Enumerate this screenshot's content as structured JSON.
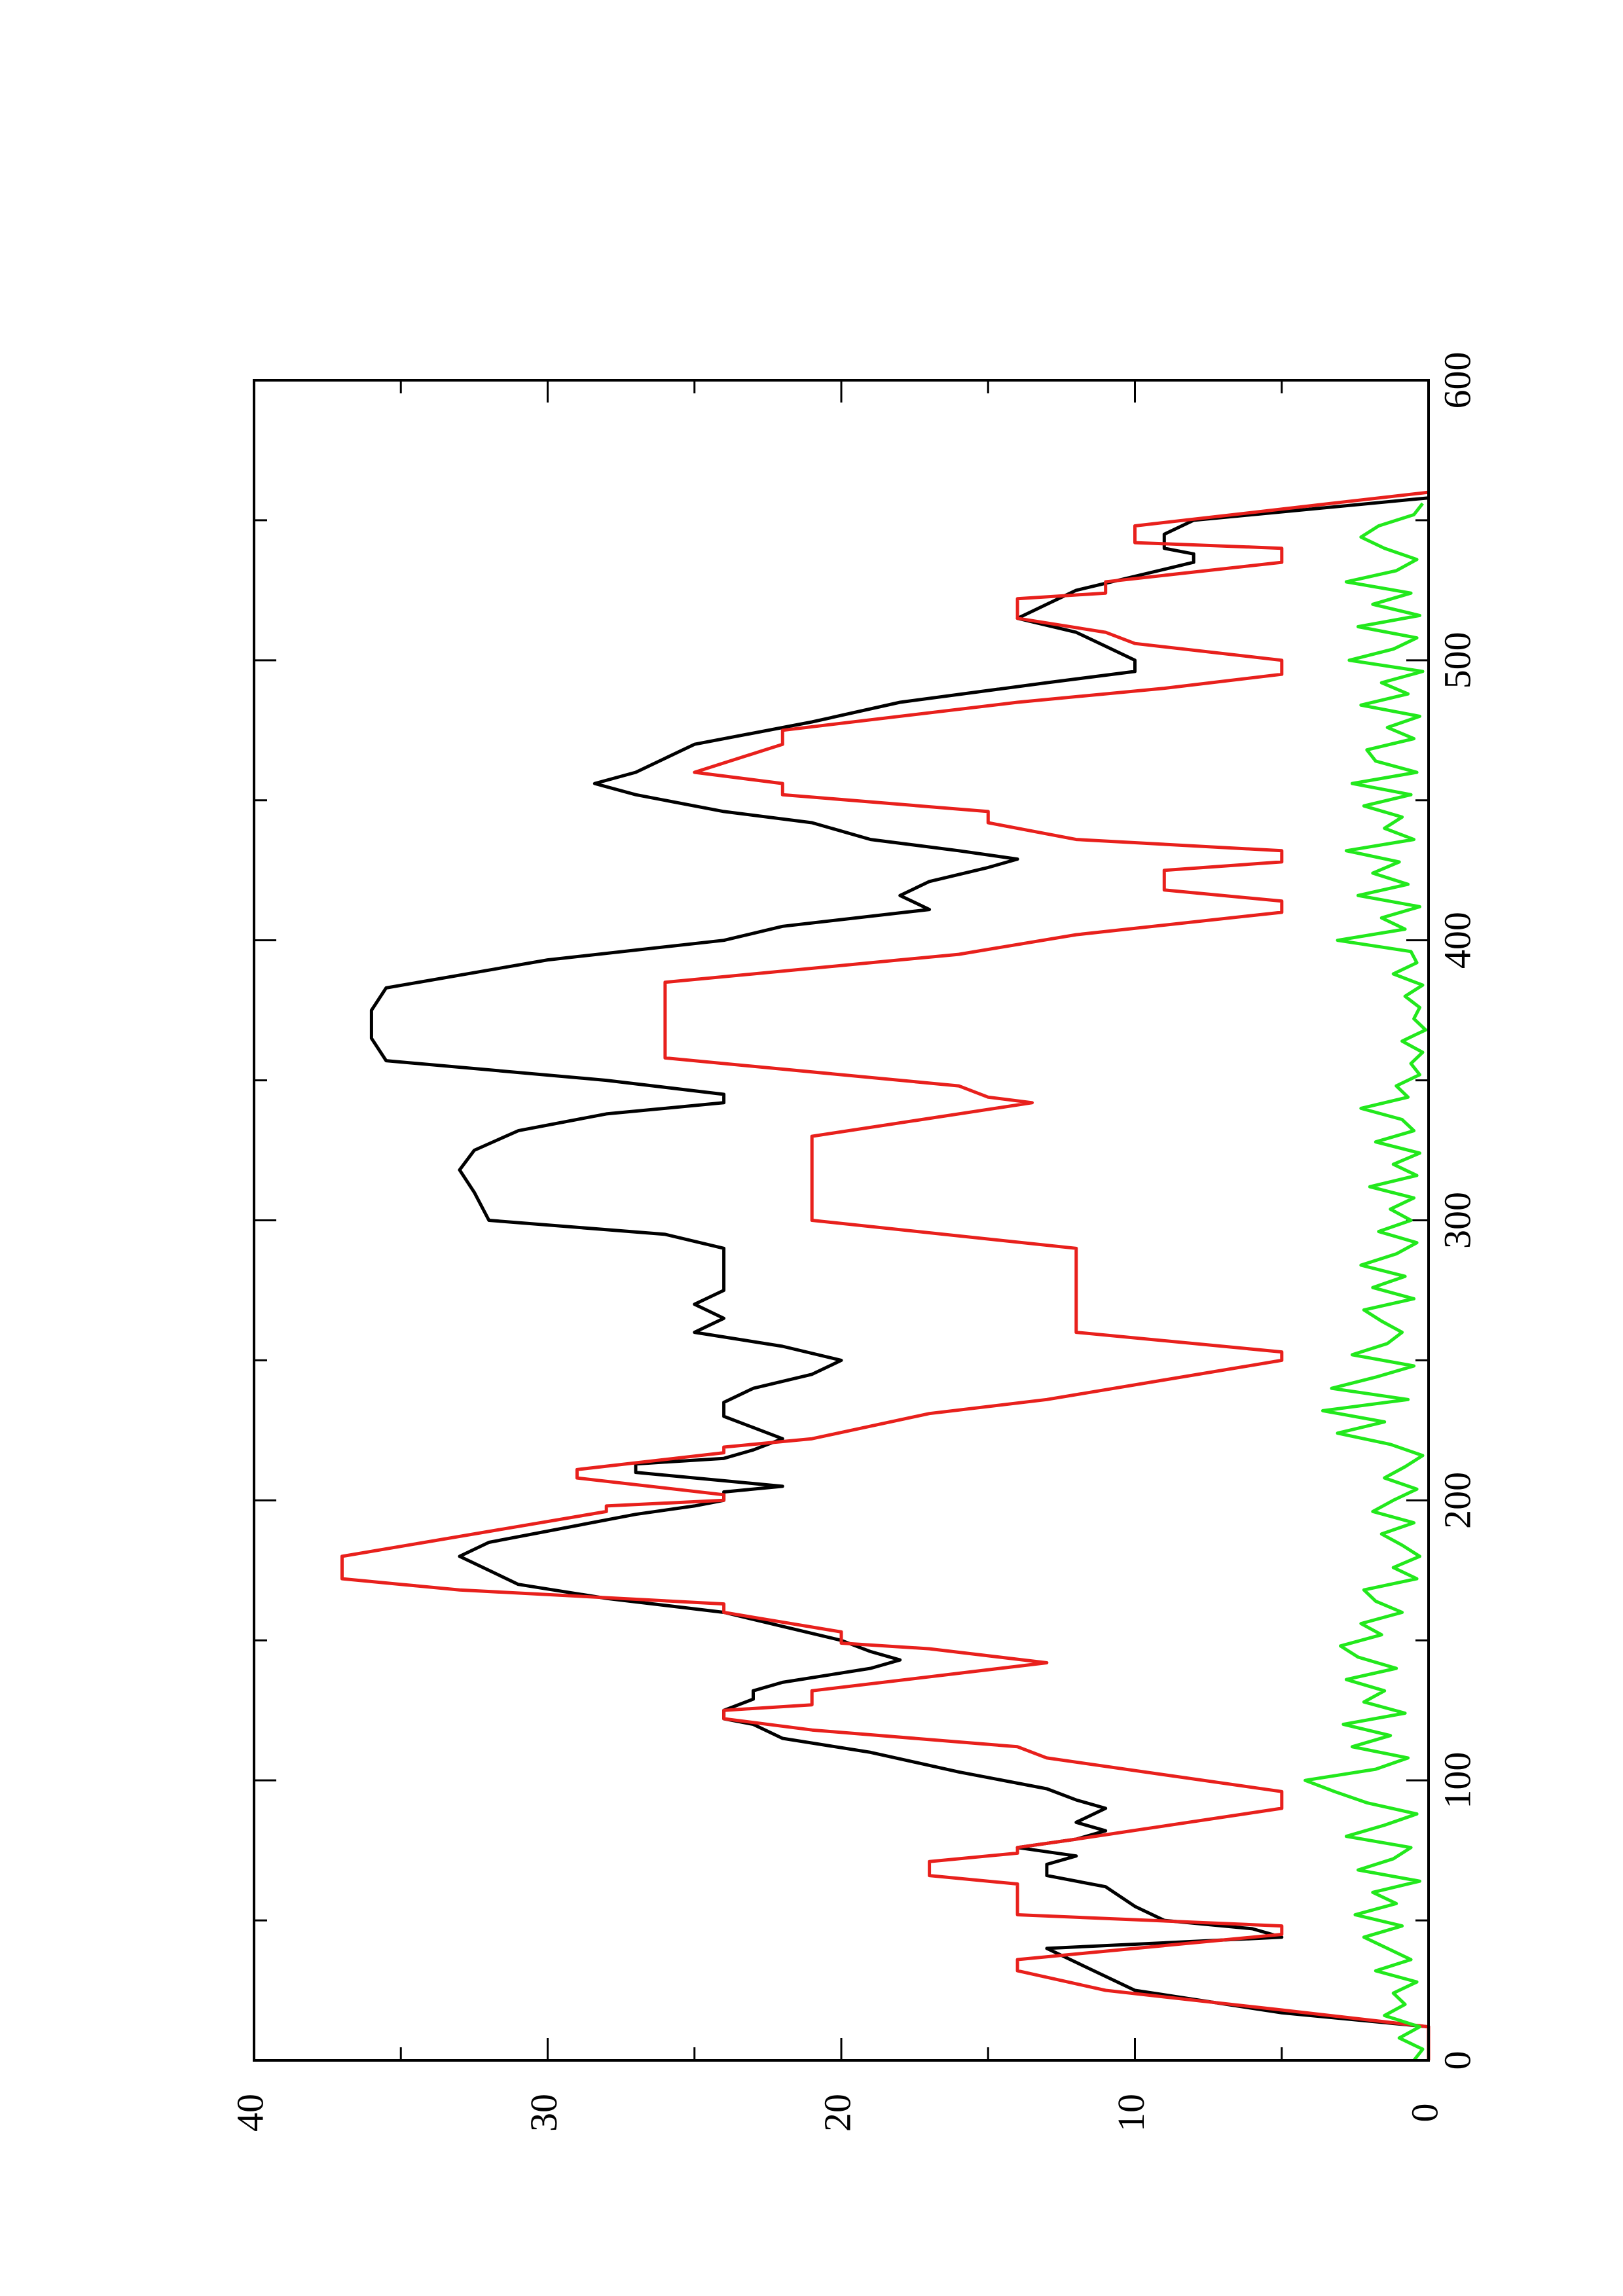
{
  "chart_data": {
    "type": "line",
    "xlim": [
      0,
      600
    ],
    "xticks": [
      0,
      100,
      200,
      300,
      400,
      500,
      600
    ],
    "xminorticks": [
      50,
      150,
      250,
      350,
      450,
      550
    ],
    "ylim": [
      0,
      40
    ],
    "yticks": [
      0,
      10,
      20,
      30,
      40
    ],
    "yminorticks": [
      5,
      15,
      25,
      35
    ],
    "series": [
      {
        "color": "#000000",
        "x": [
          0,
          12,
          17,
          25,
          35,
          40,
          44,
          47,
          50,
          55,
          62,
          66,
          70,
          73,
          76,
          79,
          82,
          85,
          90,
          93,
          97,
          103,
          110,
          115,
          120,
          122,
          125,
          129,
          132,
          135,
          140,
          143,
          146,
          150,
          155,
          160,
          165,
          170,
          175,
          180,
          185,
          195,
          198,
          200,
          203,
          205,
          207,
          210,
          213,
          215,
          218,
          222,
          226,
          230,
          235,
          240,
          245,
          250,
          255,
          260,
          265,
          270,
          275,
          280,
          290,
          295,
          300,
          310,
          318,
          325,
          332,
          338,
          342,
          345,
          350,
          357,
          365,
          375,
          383,
          393,
          400,
          405,
          411,
          416,
          421,
          426,
          429,
          432,
          436,
          442,
          446,
          452,
          456,
          460,
          465,
          470,
          478,
          485,
          492,
          496,
          500,
          505,
          510,
          515,
          520,
          525,
          530,
          535,
          538,
          540,
          545,
          550,
          558
        ],
        "values": [
          0,
          0,
          5,
          10,
          12,
          13,
          5,
          6,
          9,
          10,
          11,
          13,
          13,
          12,
          14,
          12,
          11,
          12,
          11,
          12,
          13,
          16,
          19,
          22,
          23,
          24,
          24,
          23,
          23,
          22,
          19,
          18,
          19,
          20,
          22,
          24,
          28,
          31,
          32,
          33,
          32,
          27,
          25,
          24,
          24,
          22,
          24,
          27,
          27,
          24,
          23,
          22,
          23,
          24,
          24,
          23,
          21,
          20,
          22,
          25,
          24,
          25,
          24,
          24,
          24,
          26,
          32,
          32.5,
          33,
          32.5,
          31,
          28,
          24,
          24,
          28,
          35.5,
          36,
          36,
          35.5,
          30,
          24,
          22,
          17,
          18,
          17,
          15,
          14,
          16,
          19,
          21,
          24,
          27,
          28.4,
          27,
          26,
          25,
          21,
          18,
          13,
          10,
          10,
          11,
          12,
          14,
          13,
          12,
          10,
          8,
          8,
          9,
          9,
          8,
          0
        ]
      },
      {
        "color": "#e8201c",
        "x": [
          0,
          12,
          18,
          25,
          32,
          36,
          45,
          48,
          52,
          63,
          66,
          71,
          74,
          76,
          79,
          90,
          96,
          102,
          108,
          112,
          118,
          122,
          125,
          127,
          132,
          142,
          147,
          149,
          153,
          160,
          163,
          168,
          170,
          172,
          180,
          196,
          198,
          200,
          202,
          208,
          211,
          217,
          219,
          222,
          231,
          236,
          243,
          250,
          253,
          260,
          290,
          300,
          330,
          342,
          344,
          348,
          358,
          385,
          395,
          402,
          410,
          414,
          418,
          425,
          428,
          432,
          436,
          442,
          446,
          452,
          456,
          460,
          470,
          475,
          485,
          490,
          495,
          500,
          506,
          510,
          515,
          522,
          524,
          528,
          535,
          540,
          542,
          548,
          560
        ],
        "values": [
          0,
          0,
          5,
          11,
          14,
          14,
          5,
          5,
          14,
          14,
          17,
          17,
          14,
          14,
          12,
          5,
          5,
          9,
          13,
          14,
          21,
          24,
          24,
          21,
          21,
          13,
          17,
          20,
          20,
          24,
          24,
          33,
          35,
          37,
          37,
          28,
          28,
          24,
          24,
          29,
          29,
          24,
          24,
          21,
          17,
          13,
          9,
          5,
          5,
          12,
          12,
          21,
          21,
          13.5,
          15,
          16,
          26,
          26,
          16,
          12,
          5,
          5,
          9,
          9,
          5,
          5,
          12,
          15,
          15,
          22,
          22,
          25,
          22,
          22,
          14,
          9,
          5,
          5,
          10,
          11,
          14,
          14,
          11,
          11,
          5,
          5,
          10,
          10,
          0
        ]
      },
      {
        "color": "#22e81c",
        "x": [
          0,
          4,
          8,
          12,
          16,
          20,
          24,
          28,
          32,
          36,
          40,
          44,
          48,
          52,
          56,
          60,
          64,
          68,
          72,
          76,
          80,
          84,
          88,
          92,
          96,
          100,
          104,
          108,
          112,
          116,
          120,
          124,
          128,
          132,
          136,
          140,
          144,
          148,
          152,
          156,
          160,
          164,
          168,
          172,
          176,
          180,
          184,
          188,
          192,
          196,
          200,
          204,
          208,
          212,
          216,
          220,
          224,
          228,
          232,
          236,
          240,
          244,
          248,
          252,
          256,
          260,
          264,
          268,
          272,
          276,
          280,
          284,
          288,
          292,
          296,
          300,
          304,
          308,
          312,
          316,
          320,
          324,
          328,
          332,
          336,
          340,
          344,
          348,
          352,
          356,
          360,
          364,
          368,
          372,
          376,
          380,
          384,
          388,
          392,
          396,
          400,
          404,
          408,
          412,
          416,
          420,
          424,
          428,
          432,
          436,
          440,
          444,
          448,
          452,
          456,
          460,
          464,
          468,
          472,
          476,
          480,
          484,
          488,
          492,
          496,
          500,
          504,
          508,
          512,
          516,
          520,
          524,
          528,
          532,
          536,
          540,
          544,
          548,
          552,
          556
        ],
        "values": [
          0.5,
          0.2,
          1,
          0.3,
          1.5,
          0.8,
          1.2,
          0.4,
          1.8,
          0.6,
          1.4,
          2.2,
          0.9,
          2.5,
          1.1,
          1.9,
          0.3,
          2.4,
          1.2,
          0.6,
          2.8,
          1.5,
          0.4,
          2.1,
          3.2,
          4.2,
          1.8,
          0.7,
          2.6,
          1.3,
          2.9,
          0.8,
          2.2,
          1.5,
          2.8,
          1.1,
          2.4,
          3,
          1.6,
          2.3,
          0.9,
          1.8,
          2.2,
          0.4,
          1.2,
          0.3,
          0.9,
          1.6,
          0.5,
          1.9,
          1.2,
          0.4,
          1.5,
          0.8,
          0.2,
          1.3,
          3.1,
          1.5,
          3.6,
          0.7,
          3.3,
          1.8,
          0.5,
          2.6,
          1.4,
          0.9,
          1.6,
          2.2,
          0.5,
          1.9,
          0.8,
          2.3,
          1.1,
          0.4,
          1.7,
          0.6,
          1.3,
          0.5,
          2,
          0.4,
          1.2,
          0.3,
          1.8,
          0.5,
          0.9,
          2.3,
          0.7,
          1.1,
          0.3,
          0.6,
          0.2,
          0.9,
          0.1,
          0.5,
          0.3,
          0.8,
          0.2,
          1.2,
          0.4,
          0.6,
          3.1,
          0.8,
          1.6,
          0.3,
          2.4,
          0.7,
          1.9,
          1,
          2.8,
          0.5,
          1.5,
          0.9,
          2.2,
          0.6,
          2.6,
          0.4,
          1.8,
          2.1,
          0.5,
          1.4,
          0.3,
          2.3,
          0.7,
          1.6,
          0.2,
          2.7,
          1.2,
          0.4,
          2.4,
          0.3,
          1.9,
          0.6,
          2.8,
          1.1,
          0.4,
          1.5,
          2.3,
          1.7,
          0.5,
          0.2
        ]
      }
    ]
  }
}
